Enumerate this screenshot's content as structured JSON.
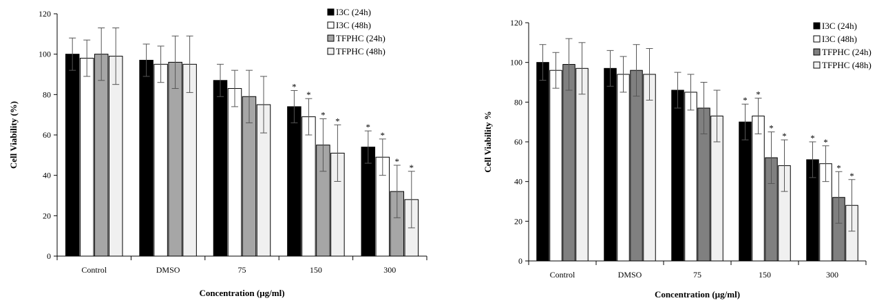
{
  "chart_data": [
    {
      "type": "bar",
      "title": "",
      "xlabel": "Concentration (µg/ml)",
      "ylabel": "Cell Viability (%)",
      "ylim": [
        0,
        120
      ],
      "yticks": [
        0,
        20,
        40,
        60,
        80,
        100,
        120
      ],
      "categories": [
        "Control",
        "DMSO",
        "75",
        "150",
        "300"
      ],
      "legend_position": "top-right",
      "series": [
        {
          "name": "I3C (24h)",
          "color": "#000000",
          "values": [
            100,
            97,
            87,
            74,
            54
          ],
          "errors": [
            8,
            8,
            8,
            8,
            8
          ],
          "significant": [
            false,
            false,
            false,
            true,
            true
          ]
        },
        {
          "name": "I3C (48h)",
          "color": "#ffffff",
          "values": [
            98,
            95,
            83,
            69,
            49
          ],
          "errors": [
            9,
            9,
            9,
            9,
            9
          ],
          "significant": [
            false,
            false,
            false,
            true,
            true
          ]
        },
        {
          "name": "TFPHC (24h)",
          "color": "#a6a6a6",
          "values": [
            100,
            96,
            79,
            55,
            32
          ],
          "errors": [
            13,
            13,
            13,
            13,
            13
          ],
          "significant": [
            false,
            false,
            false,
            true,
            true
          ]
        },
        {
          "name": "TFPHC (48h)",
          "color": "#f0f0f0",
          "values": [
            99,
            95,
            75,
            51,
            28
          ],
          "errors": [
            14,
            14,
            14,
            14,
            14
          ],
          "significant": [
            false,
            false,
            false,
            true,
            true
          ]
        }
      ]
    },
    {
      "type": "bar",
      "title": "",
      "xlabel": "Concentration (µg/ml)",
      "ylabel": "Cell Viability %",
      "ylim": [
        0,
        120
      ],
      "yticks": [
        0,
        20,
        40,
        60,
        80,
        100,
        120
      ],
      "categories": [
        "Control",
        "DMSO",
        "75",
        "150",
        "300"
      ],
      "legend_position": "top-right",
      "series": [
        {
          "name": "I3C (24h)",
          "color": "#000000",
          "values": [
            100,
            97,
            86,
            70,
            51
          ],
          "errors": [
            9,
            9,
            9,
            9,
            9
          ],
          "significant": [
            false,
            false,
            false,
            true,
            true
          ]
        },
        {
          "name": "I3C (48h)",
          "color": "#ffffff",
          "values": [
            96,
            94,
            85,
            73,
            49
          ],
          "errors": [
            9,
            9,
            9,
            9,
            9
          ],
          "significant": [
            false,
            false,
            false,
            true,
            true
          ]
        },
        {
          "name": "TFPHC (24h)",
          "color": "#808080",
          "values": [
            99,
            96,
            77,
            52,
            32
          ],
          "errors": [
            13,
            13,
            13,
            13,
            13
          ],
          "significant": [
            false,
            false,
            false,
            true,
            true
          ]
        },
        {
          "name": "TFPHC (48h)",
          "color": "#f0f0f0",
          "values": [
            97,
            94,
            73,
            48,
            28
          ],
          "errors": [
            13,
            13,
            13,
            13,
            13
          ],
          "significant": [
            false,
            false,
            false,
            true,
            true
          ]
        }
      ]
    }
  ]
}
